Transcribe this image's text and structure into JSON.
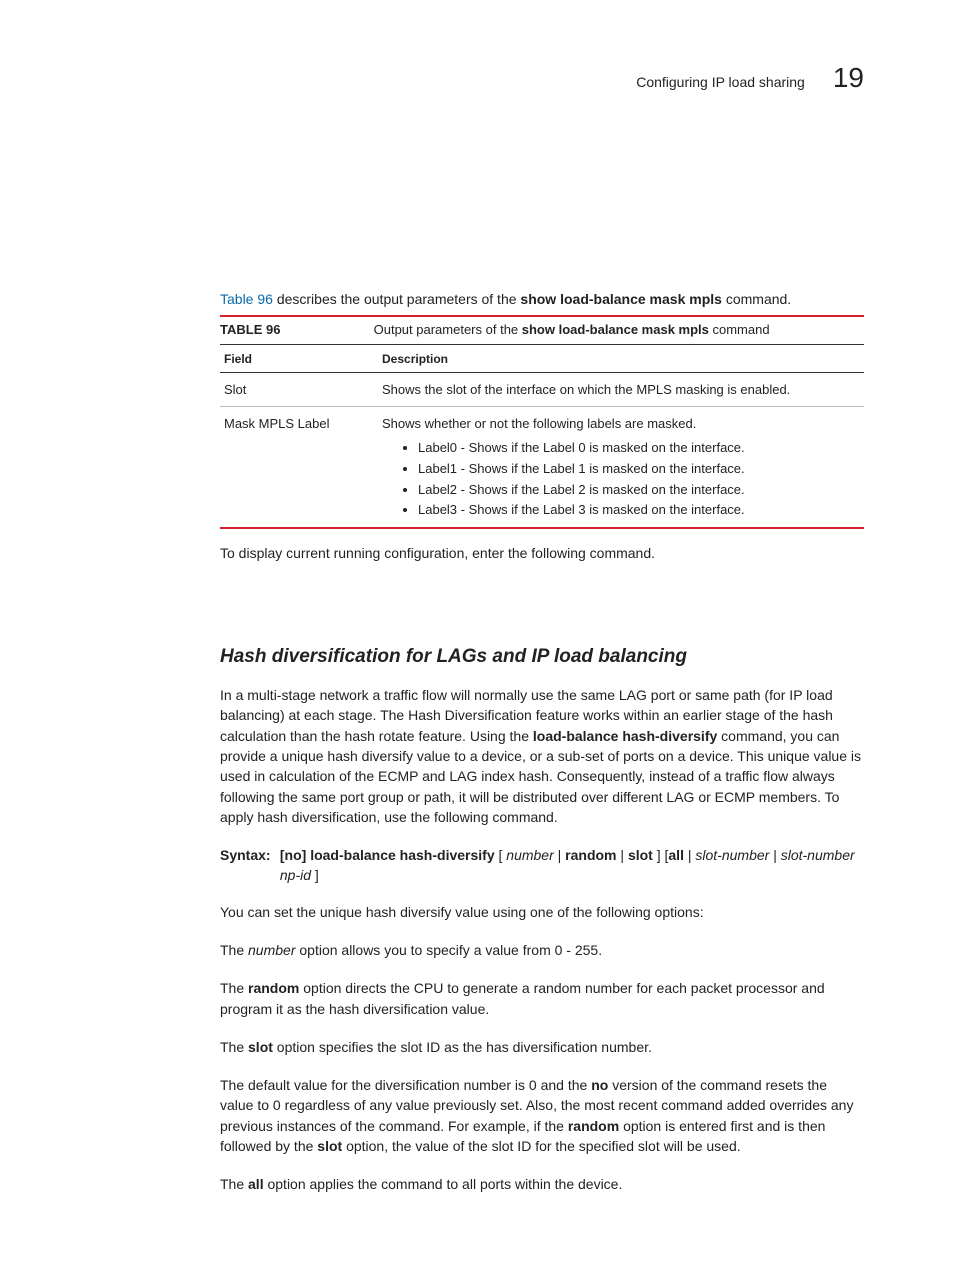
{
  "header": {
    "running_title": "Configuring IP load sharing",
    "chapter_number": "19"
  },
  "intro": {
    "link_text": "Table 96",
    "rest": " describes the output parameters of the ",
    "cmd": "show load-balance mask mpls",
    "tail": " command."
  },
  "table": {
    "label": "TABLE 96",
    "caption_text_pre": "Output parameters of the ",
    "caption_cmd": "show load-balance mask mpls",
    "caption_text_post": " command",
    "columns": [
      "Field",
      "Description"
    ],
    "rows": [
      {
        "field": "Slot",
        "desc": "Shows the slot of the interface on which the MPLS masking is enabled."
      },
      {
        "field": "Mask MPLS Label",
        "desc": "Shows whether or not the following labels are masked.",
        "bullets": [
          "Label0 - Shows if the Label 0 is masked on the interface.",
          "Label1 - Shows if the Label 1 is masked on the interface.",
          "Label2 - Shows if the Label 2 is masked on the interface.",
          "Label3 - Shows if the Label 3 is masked on the interface."
        ]
      }
    ]
  },
  "after_table": "To display current running configuration, enter the following command.",
  "section": {
    "heading": "Hash diversification for LAGs and IP load balancing",
    "p1_a": "In a multi-stage network a traffic flow will normally use the same LAG port or same path (for IP load balancing) at each stage. The Hash Diversification feature works within an earlier stage of the hash calculation than the hash rotate feature. Using the ",
    "p1_cmd": "load-balance hash-diversify",
    "p1_b": " command, you can provide a unique hash diversify value to a device, or a sub-set of ports on a device. This unique value is used in calculation of the ECMP and LAG index hash. Consequently, instead of a traffic flow always following the same port group or path, it will be distributed over different LAG or ECMP members. To apply hash diversification, use the following command.",
    "syntax": {
      "label": "Syntax:",
      "parts": {
        "no": "[no] load-balance hash-diversify",
        "lb": " [ ",
        "number": "number",
        "sep1": " | ",
        "random": "random",
        "sep2": " | ",
        "slot": "slot",
        "rb": " ]  [",
        "all": "all",
        "sep3": " | ",
        "slotnum": "slot-number",
        "sep4": " | ",
        "slotnum_np": "slot-number np-id",
        "rb2": " ]"
      }
    },
    "p2": "You can set the unique hash diversify value using one of the following options:",
    "p3_a": "The ",
    "p3_i": "number",
    "p3_b": " option allows you to specify a value from 0 - 255.",
    "p4_a": "The ",
    "p4_bold": "random",
    "p4_b": " option directs the CPU to generate a random number for each packet processor and program it as the hash diversification value.",
    "p5_a": "The ",
    "p5_bold": "slot",
    "p5_b": " option specifies the slot ID as the has diversification number.",
    "p6_a": "The default value for the diversification number is 0 and the ",
    "p6_bold1": "no",
    "p6_b": " version of the command resets the value to 0 regardless of any value previously set. Also, the most recent command added overrides any previous instances of the command. For example, if the ",
    "p6_bold2": "random",
    "p6_c": " option is entered first and is then followed by the ",
    "p6_bold3": "slot",
    "p6_d": " option, the value of the slot ID for the specified slot will be used.",
    "p7_a": "The ",
    "p7_bold": "all",
    "p7_b": " option applies the command to all ports within the device."
  },
  "colors": {
    "rule_red": "#d21f2e",
    "link_blue": "#0b6aa6"
  }
}
